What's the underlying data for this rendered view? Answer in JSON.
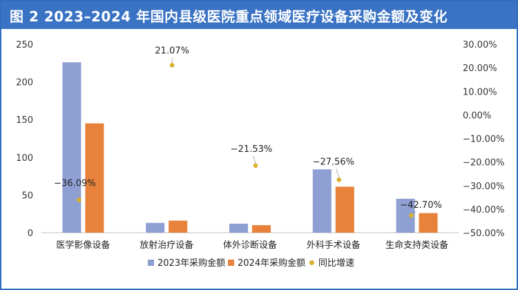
{
  "title": "图 2  2023–2024 年国内县级医院重点领域医疗设备采购金额及变化",
  "chart_data": {
    "type": "bar",
    "categories": [
      "医学影像设备",
      "放射治疗设备",
      "体外诊断设备",
      "外科手术设备",
      "生命支持类设备"
    ],
    "series": [
      {
        "name": "2023年采购金额",
        "type": "bar",
        "axis": "left",
        "color": "#8e9fd3",
        "values": [
          226,
          13,
          12,
          84,
          45
        ]
      },
      {
        "name": "2024年采购金额",
        "type": "bar",
        "axis": "left",
        "color": "#e8823a",
        "values": [
          145,
          16,
          10,
          61,
          26
        ]
      },
      {
        "name": "同比增速",
        "type": "scatter",
        "axis": "right",
        "color": "#d9b12e",
        "values": [
          -36.09,
          21.07,
          -21.53,
          -27.56,
          -42.7
        ]
      }
    ],
    "data_labels": [
      "−36.09%",
      "21.07%",
      "−21.53%",
      "−27.56%",
      "−42.70%"
    ],
    "ylim_left": [
      0,
      250
    ],
    "yticks_left": [
      "0",
      "50",
      "100",
      "150",
      "200",
      "250"
    ],
    "ylim_right": [
      -50,
      30
    ],
    "yticks_right": [
      "−50.00%",
      "−40.00%",
      "−30.00%",
      "−20.00%",
      "−10.00%",
      "0.00%",
      "10.00%",
      "20.00%",
      "30.00%"
    ],
    "grid": false,
    "legend_position": "bottom"
  }
}
